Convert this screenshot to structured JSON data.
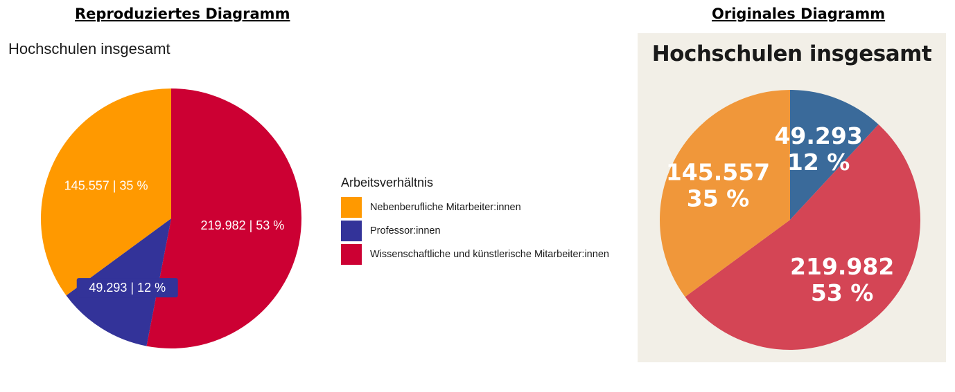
{
  "headings": {
    "left": "Reproduziertes Diagramm",
    "right": "Originales Diagramm"
  },
  "chart_data": [
    {
      "type": "pie",
      "title": "Hochschulen insgesamt",
      "legend_title": "Arbeitsverhältnis",
      "legend_position": "right",
      "slices": [
        {
          "name": "Nebenberufliche Mitarbeiter:innen",
          "value": 145557,
          "label": "145.557 | 35 %",
          "color": "#ff9900"
        },
        {
          "name": "Professor:innen",
          "value": 49293,
          "label": "49.293 | 12 %",
          "color": "#333399"
        },
        {
          "name": "Wissenschaftliche und künstlerische Mitarbeiter:innen",
          "value": 219982,
          "label": "219.982 | 53 %",
          "color": "#cc0033"
        }
      ]
    },
    {
      "type": "pie",
      "title": "Hochschulen insgesamt",
      "background": "#f2efe7",
      "slices": [
        {
          "value": 49293,
          "label_lines": [
            "49.293",
            "12 %"
          ],
          "color": "#3a6a9a"
        },
        {
          "value": 219982,
          "label_lines": [
            "219.982",
            "53 %"
          ],
          "color": "#d44555"
        },
        {
          "value": 145557,
          "label_lines": [
            "145.557",
            "35 %"
          ],
          "color": "#f0973a"
        }
      ]
    }
  ]
}
